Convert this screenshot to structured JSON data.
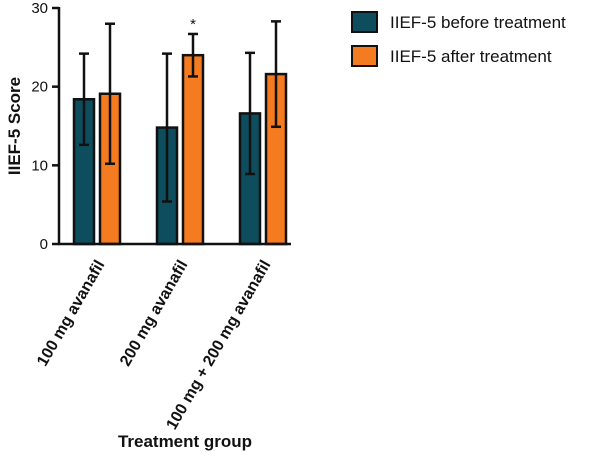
{
  "chart_data": {
    "type": "bar",
    "title": "",
    "xlabel": "Treatment group",
    "ylabel": "IIEF-5 Score",
    "ylim": [
      0,
      30
    ],
    "yticks": [
      "0",
      "10",
      "20",
      "30"
    ],
    "categories": [
      "100 mg avanafil",
      "200 mg avanafil",
      "100 mg + 200 mg avanafil"
    ],
    "series": [
      {
        "name": "IIEF-5 before treatment",
        "color": "#0d4d5e",
        "values": [
          18.4,
          14.8,
          16.6
        ],
        "error": [
          5.8,
          9.4,
          7.7
        ]
      },
      {
        "name": "IIEF-5 after treatment",
        "color": "#f47b20",
        "values": [
          19.1,
          24.0,
          21.6
        ],
        "error": [
          8.9,
          2.7,
          6.7
        ]
      }
    ],
    "annotations": [
      {
        "text": "*",
        "category": 1,
        "series": 1
      }
    ],
    "legend_position": "top-right",
    "grid": false
  }
}
